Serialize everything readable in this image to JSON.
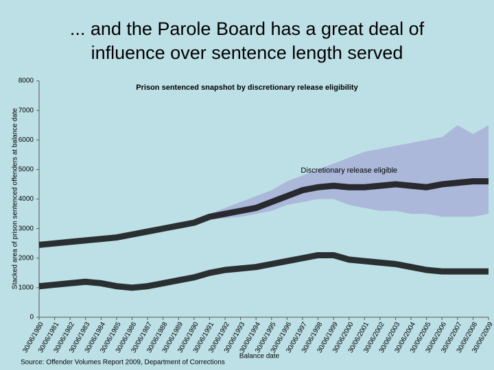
{
  "header": {
    "title_lines": [
      "... and the Parole Board has a great deal of",
      "influence over sentence length served"
    ]
  },
  "chart_data": {
    "type": "line",
    "title": "Prison sentenced snapshot by discretionary release eligibility",
    "y_label": "Stacked area of prison sentenced offenders at balance date",
    "x_label": "Balance date",
    "categories": [
      "30/06/1980",
      "30/06/1981",
      "30/06/1982",
      "30/06/1983",
      "30/06/1984",
      "30/06/1985",
      "30/06/1986",
      "30/06/1987",
      "30/06/1988",
      "30/06/1989",
      "30/06/1990",
      "30/06/1991",
      "30/06/1992",
      "30/06/1993",
      "30/06/1994",
      "30/06/1995",
      "30/06/1996",
      "30/06/1997",
      "30/06/1998",
      "30/06/1999",
      "30/06/2000",
      "30/06/2001",
      "30/06/2002",
      "30/06/2003",
      "30/06/2004",
      "30/06/2005",
      "30/06/2006",
      "30/06/2007",
      "30/06/2008",
      "30/06/2009"
    ],
    "series": [
      {
        "color": "#111111",
        "values": [
          1050,
          1100,
          1150,
          1200,
          1150,
          1050,
          1000,
          1050,
          1150,
          1250,
          1350,
          1500,
          1600,
          1650,
          1700,
          1800,
          1900,
          2000,
          2100,
          2100,
          1950,
          1900,
          1850,
          1800,
          1700,
          1600,
          1550,
          1550,
          1550,
          1550
        ]
      },
      {
        "name": "Discretionary release eligible",
        "color": "#111111",
        "values": [
          2450,
          2500,
          2550,
          2600,
          2650,
          2700,
          2800,
          2900,
          3000,
          3100,
          3200,
          3400,
          3500,
          3600,
          3700,
          3900,
          4100,
          4300,
          4400,
          4450,
          4400,
          4400,
          4450,
          4500,
          4450,
          4400,
          4500,
          4550,
          4600,
          4600
        ]
      }
    ],
    "band": {
      "color": "#a9b0d6",
      "high": [
        null,
        null,
        null,
        null,
        null,
        null,
        null,
        null,
        null,
        null,
        null,
        3500,
        3700,
        3900,
        4100,
        4300,
        4600,
        4800,
        5000,
        5200,
        5400,
        5600,
        5700,
        5800,
        5900,
        6000,
        6100,
        6500,
        6200,
        6500
      ],
      "low": [
        null,
        null,
        null,
        null,
        null,
        null,
        null,
        null,
        null,
        null,
        null,
        3300,
        3350,
        3400,
        3500,
        3600,
        3800,
        3900,
        4000,
        4000,
        3800,
        3700,
        3600,
        3600,
        3500,
        3500,
        3400,
        3400,
        3400,
        3500
      ]
    },
    "ylim": [
      0,
      8000
    ],
    "yticks": [
      0,
      1000,
      2000,
      3000,
      4000,
      5000,
      6000,
      7000,
      8000
    ],
    "source": "Source: Offender Volumes Report 2009, Department of Corrections"
  }
}
